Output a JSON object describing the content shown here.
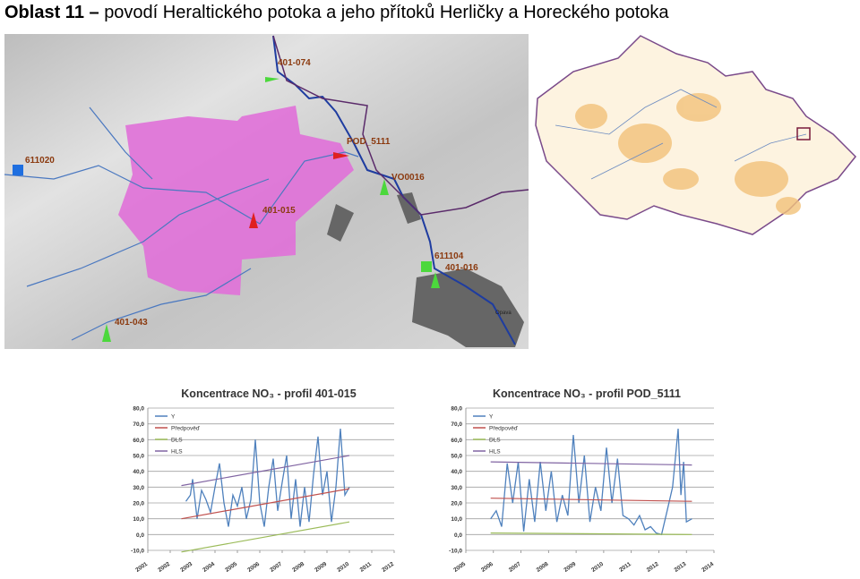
{
  "header": {
    "title_prefix": "Oblast 11 –",
    "title": "povodí Heraltického potoka a jeho přítoků Herličky a Horeckého potoka"
  },
  "map": {
    "labels": [
      "401-074",
      "POD_5111",
      "VO0016",
      "611020",
      "401-015",
      "611104",
      "401-016",
      "401-043",
      "Opava"
    ]
  },
  "chart_data": [
    {
      "type": "line",
      "title": "Koncentrace NO₃ - profil 401-015",
      "xlim": [
        2001,
        2012
      ],
      "xticks": [
        2001,
        2002,
        2003,
        2004,
        2005,
        2006,
        2007,
        2008,
        2009,
        2010,
        2011,
        2012
      ],
      "ylim": [
        -10,
        80
      ],
      "yticks": [
        {
          "value": -10,
          "label": "-10,0"
        },
        {
          "value": 0,
          "label": "0,0"
        },
        {
          "value": 10,
          "label": "10,0"
        },
        {
          "value": 20,
          "label": "20,0"
        },
        {
          "value": 30,
          "label": "30,0"
        },
        {
          "value": 40,
          "label": "40,0"
        },
        {
          "value": 50,
          "label": "50,0"
        },
        {
          "value": 60,
          "label": "60,0"
        },
        {
          "value": 70,
          "label": "70,0"
        },
        {
          "value": 80,
          "label": "80,0"
        }
      ],
      "grid": true,
      "legend": "upper left",
      "series": [
        {
          "name": "Y",
          "color": "#4f81bd",
          "x": [
            2002.7,
            2002.9,
            2003.0,
            2003.2,
            2003.4,
            2003.6,
            2003.8,
            2004.0,
            2004.2,
            2004.4,
            2004.6,
            2004.8,
            2005.0,
            2005.2,
            2005.4,
            2005.6,
            2005.8,
            2006.0,
            2006.2,
            2006.4,
            2006.6,
            2006.8,
            2007.0,
            2007.2,
            2007.4,
            2007.6,
            2007.8,
            2008.0,
            2008.2,
            2008.4,
            2008.6,
            2008.8,
            2009.0,
            2009.2,
            2009.4,
            2009.6,
            2009.8,
            2010.0
          ],
          "values": [
            21,
            25,
            35,
            10,
            28,
            22,
            14,
            30,
            45,
            20,
            5,
            25,
            18,
            30,
            10,
            22,
            60,
            20,
            5,
            30,
            48,
            15,
            33,
            50,
            10,
            35,
            5,
            30,
            8,
            38,
            62,
            25,
            40,
            8,
            30,
            67,
            25,
            30
          ]
        },
        {
          "name": "Předpověď",
          "color": "#c0504d",
          "x": [
            2002.5,
            2010.0
          ],
          "values": [
            10,
            29
          ]
        },
        {
          "name": "DLS",
          "color": "#9bbb59",
          "x": [
            2002.5,
            2010.0
          ],
          "values": [
            -11,
            8
          ]
        },
        {
          "name": "HLS",
          "color": "#8064a2",
          "x": [
            2002.5,
            2010.0
          ],
          "values": [
            31,
            50
          ]
        }
      ]
    },
    {
      "type": "line",
      "title": "Koncentrace NO₃ - profil POD_5111",
      "xlim": [
        2005,
        2014
      ],
      "xticks": [
        2005,
        2006,
        2007,
        2008,
        2009,
        2010,
        2011,
        2012,
        2013,
        2014
      ],
      "ylim": [
        -10,
        80
      ],
      "yticks": [
        {
          "value": -10,
          "label": "-10,0"
        },
        {
          "value": 0,
          "label": "0,0"
        },
        {
          "value": 10,
          "label": "10,0"
        },
        {
          "value": 20,
          "label": "20,0"
        },
        {
          "value": 30,
          "label": "30,0"
        },
        {
          "value": 40,
          "label": "40,0"
        },
        {
          "value": 50,
          "label": "50,0"
        },
        {
          "value": 60,
          "label": "60,0"
        },
        {
          "value": 70,
          "label": "70,0"
        },
        {
          "value": 80,
          "label": "80,0"
        }
      ],
      "grid": true,
      "legend": "upper left",
      "series": [
        {
          "name": "Y",
          "color": "#4f81bd",
          "x": [
            2005.9,
            2006.1,
            2006.3,
            2006.5,
            2006.7,
            2006.9,
            2007.1,
            2007.3,
            2007.5,
            2007.7,
            2007.9,
            2008.1,
            2008.3,
            2008.5,
            2008.7,
            2008.9,
            2009.1,
            2009.3,
            2009.5,
            2009.7,
            2009.9,
            2010.1,
            2010.3,
            2010.5,
            2010.7,
            2010.9,
            2011.1,
            2011.3,
            2011.5,
            2011.7,
            2011.9,
            2012.1,
            2012.3,
            2012.5,
            2012.7,
            2012.8,
            2012.9,
            2013.0,
            2013.2
          ],
          "values": [
            10,
            15,
            5,
            45,
            20,
            46,
            2,
            35,
            8,
            46,
            15,
            40,
            8,
            25,
            12,
            63,
            20,
            50,
            8,
            30,
            15,
            55,
            20,
            48,
            12,
            10,
            6,
            12,
            3,
            5,
            1,
            0,
            15,
            30,
            67,
            25,
            46,
            8,
            10
          ]
        },
        {
          "name": "Předpověď",
          "color": "#c0504d",
          "x": [
            2005.9,
            2013.2
          ],
          "values": [
            23,
            21
          ]
        },
        {
          "name": "DLS",
          "color": "#9bbb59",
          "x": [
            2005.9,
            2013.2
          ],
          "values": [
            1,
            0
          ]
        },
        {
          "name": "HLS",
          "color": "#8064a2",
          "x": [
            2005.9,
            2013.2
          ],
          "values": [
            46,
            44
          ]
        }
      ]
    }
  ]
}
